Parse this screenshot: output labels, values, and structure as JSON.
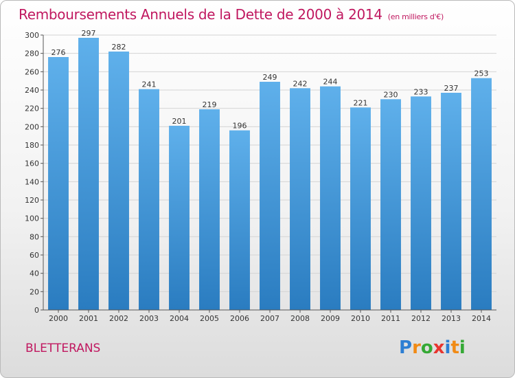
{
  "title": "Remboursements Annuels de la Dette de 2000 à 2014",
  "title_unit": "(en milliers d'€)",
  "commune": "BLETTERANS",
  "logo_letters": [
    "P",
    "r",
    "o",
    "x",
    "i",
    "t",
    "i"
  ],
  "logo_colors": [
    "#2d7fd3",
    "#f18b16",
    "#35a935",
    "#e8352f",
    "#2d7fd3",
    "#f18b16",
    "#35a935"
  ],
  "chart_data": {
    "type": "bar",
    "categories": [
      "2000",
      "2001",
      "2002",
      "2003",
      "2004",
      "2005",
      "2006",
      "2007",
      "2008",
      "2009",
      "2010",
      "2011",
      "2012",
      "2013",
      "2014"
    ],
    "values": [
      276,
      297,
      282,
      241,
      201,
      219,
      196,
      249,
      242,
      244,
      221,
      230,
      233,
      237,
      253
    ],
    "ylim": [
      0,
      300
    ],
    "yticks": [
      0,
      20,
      40,
      60,
      80,
      100,
      120,
      140,
      160,
      180,
      200,
      220,
      240,
      260,
      280,
      300
    ],
    "grid": true,
    "bar_color_top": "#5fb0eb",
    "bar_color_bottom": "#2a7cc0"
  }
}
